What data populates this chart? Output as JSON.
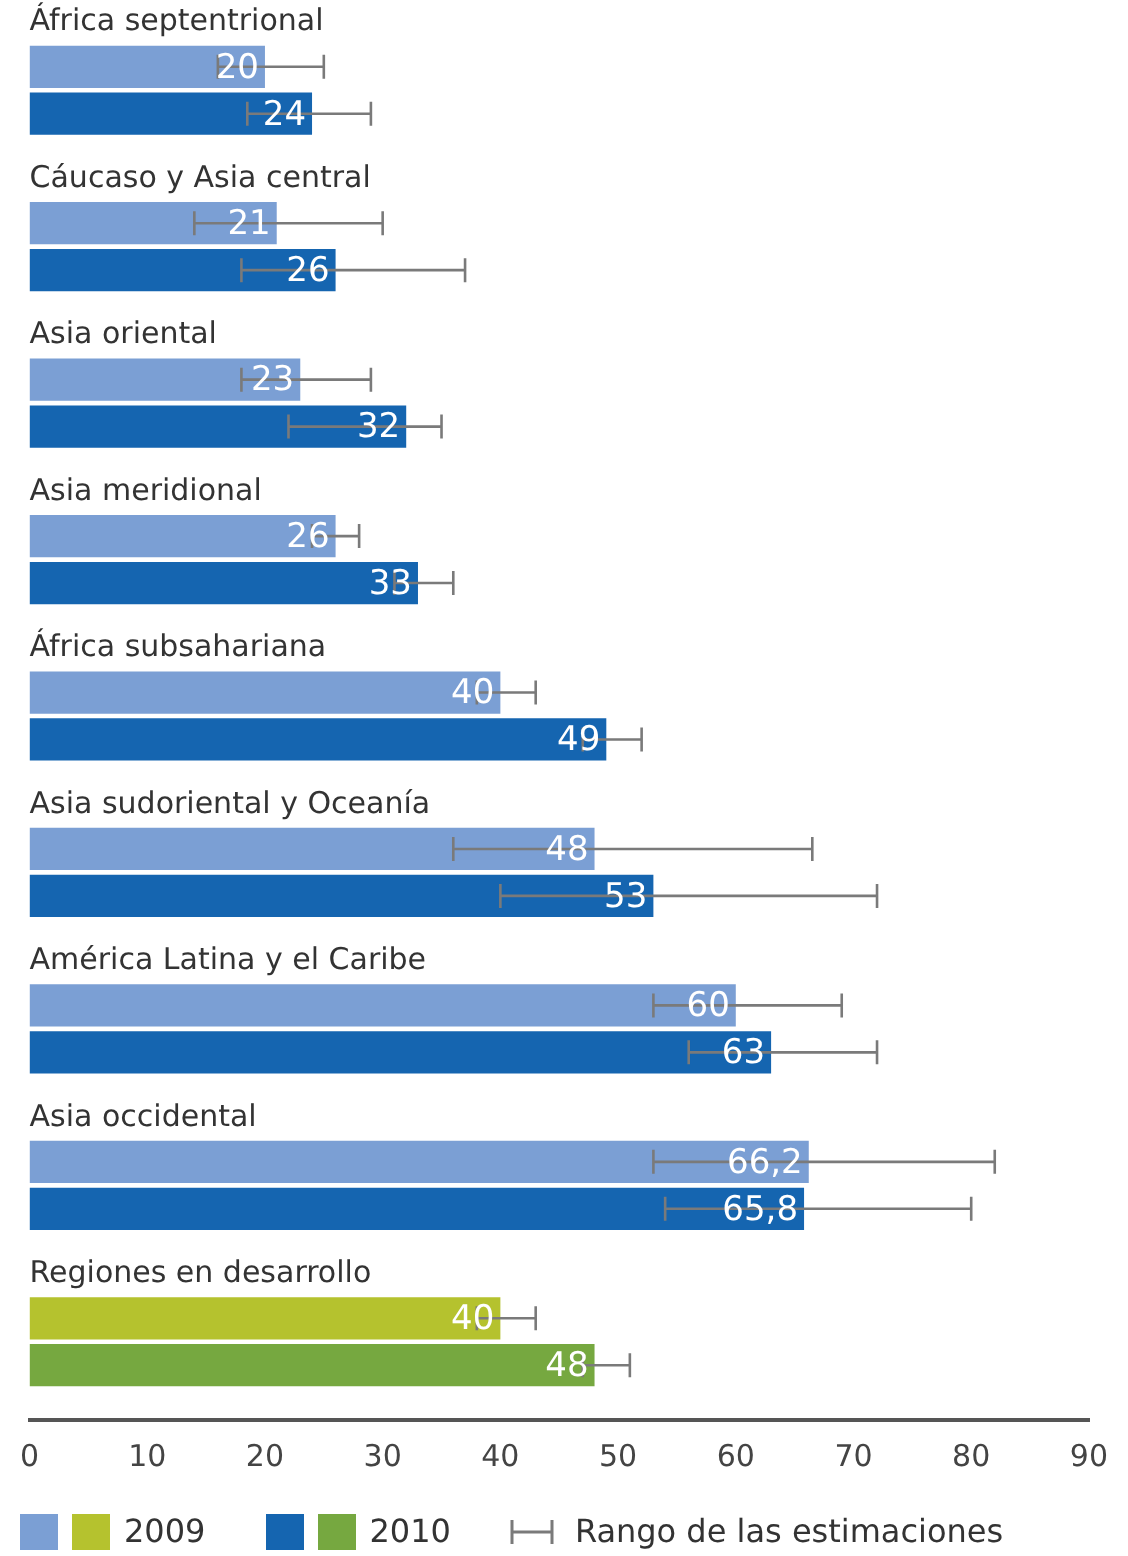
{
  "chart_data": {
    "type": "bar",
    "orientation": "horizontal",
    "categories": [
      "África septentrional",
      "Cáucaso y Asia central",
      "Asia oriental",
      "Asia meridional",
      "África subsahariana",
      "Asia sudoriental y Oceanía",
      "América Latina y el Caribe",
      "Asia occidental",
      "Regiones en desarrollo"
    ],
    "series": [
      {
        "name": "2009",
        "colors": [
          "#7b9fd4",
          "#7b9fd4",
          "#7b9fd4",
          "#7b9fd4",
          "#7b9fd4",
          "#7b9fd4",
          "#7b9fd4",
          "#7b9fd4",
          "#b5c22e"
        ],
        "values": [
          20,
          21,
          23,
          26,
          40,
          48,
          60,
          66.2,
          40
        ],
        "value_labels": [
          "20",
          "21",
          "23",
          "26",
          "40",
          "48",
          "60",
          "66,2",
          "40"
        ],
        "errors": [
          [
            16,
            25
          ],
          [
            14,
            30
          ],
          [
            18,
            29
          ],
          [
            24,
            28
          ],
          [
            38,
            43
          ],
          [
            36,
            66.5
          ],
          [
            53,
            69
          ],
          [
            53,
            82
          ],
          [
            38,
            43
          ]
        ]
      },
      {
        "name": "2010",
        "colors": [
          "#1565b0",
          "#1565b0",
          "#1565b0",
          "#1565b0",
          "#1565b0",
          "#1565b0",
          "#1565b0",
          "#1565b0",
          "#76a840"
        ],
        "values": [
          24,
          26,
          32,
          33,
          49,
          53,
          63,
          65.8,
          48
        ],
        "value_labels": [
          "24",
          "26",
          "32",
          "33",
          "49",
          "53",
          "63",
          "65,8",
          "48"
        ],
        "errors": [
          [
            18.5,
            29
          ],
          [
            18,
            37
          ],
          [
            22,
            35
          ],
          [
            31,
            36
          ],
          [
            47,
            52
          ],
          [
            40,
            72
          ],
          [
            56,
            72
          ],
          [
            54,
            80
          ],
          [
            47,
            51
          ]
        ]
      }
    ],
    "xlim": [
      0,
      90
    ],
    "xticks": [
      0,
      10,
      20,
      30,
      40,
      50,
      60,
      70,
      80,
      90
    ],
    "grid": false,
    "legend": "bottom",
    "annotations": [
      "Rango de las estimaciones"
    ]
  }
}
